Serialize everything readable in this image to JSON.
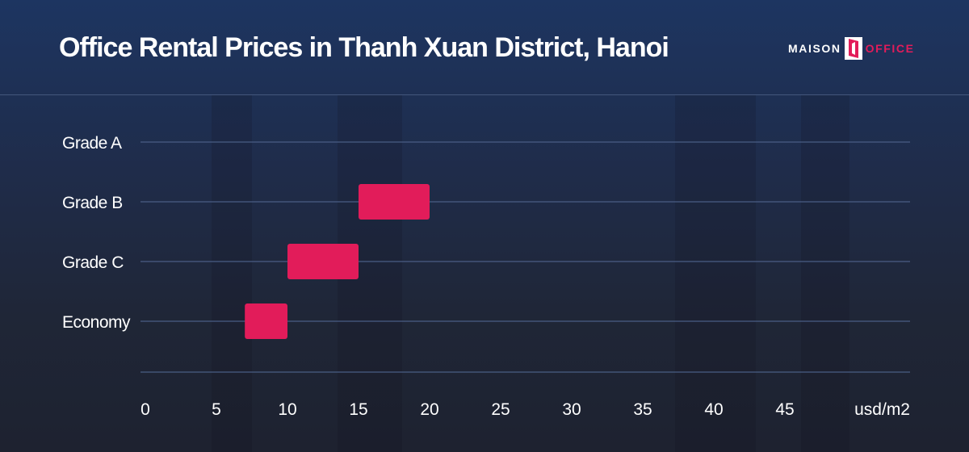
{
  "header": {
    "title": "Office Rental Prices in Thanh Xuan District, Hanoi",
    "logo_left": "MAISON",
    "logo_right": "OFFICE"
  },
  "colors": {
    "bar": "#e21c5a",
    "gridline": "#4a5d85",
    "text": "#ffffff"
  },
  "chart_data": {
    "type": "bar",
    "orientation": "horizontal-range",
    "title": "Office Rental Prices in Thanh Xuan District, Hanoi",
    "xlabel": "usd/m2",
    "ylabel": "",
    "xlim": [
      0,
      50
    ],
    "x_ticks": [
      0,
      5,
      10,
      15,
      20,
      25,
      30,
      35,
      40,
      45
    ],
    "grid": true,
    "legend": "none",
    "categories": [
      "Grade A",
      "Grade B",
      "Grade C",
      "Economy"
    ],
    "ranges": [
      {
        "category": "Grade A",
        "min": null,
        "max": null
      },
      {
        "category": "Grade B",
        "min": 15,
        "max": 20
      },
      {
        "category": "Grade C",
        "min": 10,
        "max": 15
      },
      {
        "category": "Economy",
        "min": 7,
        "max": 10
      }
    ]
  }
}
